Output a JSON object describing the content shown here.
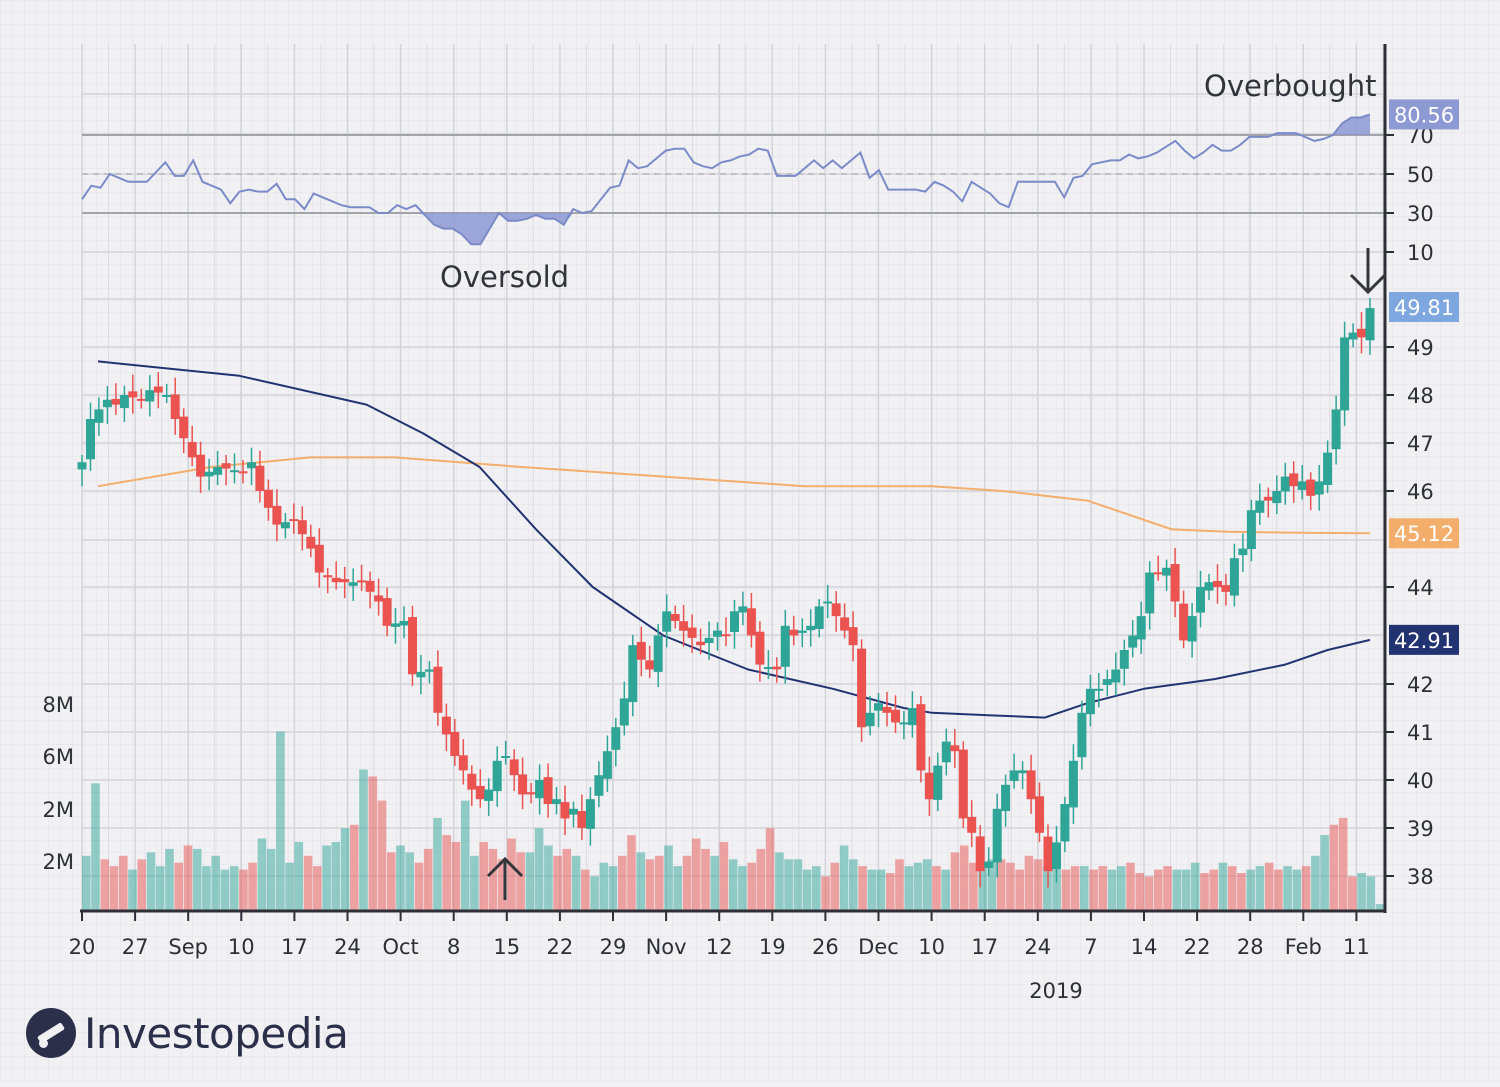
{
  "brand": {
    "name": "Investopedia",
    "icon": "investopedia-logo-icon"
  },
  "colors": {
    "up": "#2fa597",
    "down": "#ea5350",
    "ma_short": "#223371",
    "ma_long": "#f3ae6b",
    "rsi": "#7b8bc8",
    "rsi_fill": "#8d99d3"
  },
  "chart_data": [
    {
      "type": "line",
      "name": "RSI",
      "yaxis_ticks": [
        "70",
        "50",
        "30",
        "10"
      ],
      "reference_lines": [
        70,
        50,
        30
      ],
      "ylim": [
        0,
        100
      ],
      "current_value": "80.56",
      "annotations": {
        "overbought": "Overbought",
        "oversold": "Oversold"
      },
      "values": [
        37,
        44,
        43,
        50,
        48,
        46,
        46,
        46,
        51,
        56,
        49,
        49,
        57,
        46,
        44,
        42,
        35,
        41,
        42,
        41,
        41,
        45,
        37,
        37,
        32,
        40,
        38,
        36,
        34,
        33,
        33,
        33,
        30,
        30,
        34,
        32,
        34,
        29,
        24,
        22,
        22,
        19,
        14,
        14,
        22,
        30,
        26,
        26,
        27,
        29,
        27,
        27,
        24,
        32,
        30,
        31,
        37,
        43,
        44,
        57,
        53,
        54,
        58,
        62,
        63,
        63,
        56,
        54,
        53,
        56,
        57,
        59,
        60,
        63,
        62,
        49,
        49,
        49,
        53,
        57,
        53,
        57,
        53,
        57,
        61,
        48,
        52,
        42,
        42,
        42,
        42,
        41,
        46,
        44,
        41,
        36,
        46,
        43,
        40,
        35,
        33,
        46,
        46,
        46,
        46,
        46,
        38,
        48,
        49,
        55,
        56,
        57,
        57,
        60,
        58,
        59,
        61,
        64,
        67,
        62,
        58,
        61,
        65,
        62,
        62,
        65,
        69,
        69,
        69,
        71,
        71,
        71,
        69,
        67,
        68,
        70,
        76,
        79,
        79,
        80.56
      ]
    },
    {
      "type": "candlestick",
      "name": "Price",
      "yaxis_ticks": [
        "49",
        "48",
        "47",
        "46",
        "44",
        "42",
        "41",
        "40",
        "39",
        "38"
      ],
      "ylim": [
        37.4,
        50.6
      ],
      "xaxis_ticks": [
        "20",
        "27",
        "Sep",
        "10",
        "17",
        "24",
        "Oct",
        "8",
        "15",
        "22",
        "29",
        "Nov",
        "12",
        "19",
        "26",
        "Dec",
        "10",
        "17",
        "24",
        "7",
        "14",
        "22",
        "28",
        "Feb",
        "11"
      ],
      "year_label": "2019",
      "price_badges": [
        "49.81",
        "45.12",
        "42.91"
      ],
      "anchors": [
        [
          0,
          46.6
        ],
        [
          1,
          47.5
        ],
        [
          3,
          47.9
        ],
        [
          4,
          47.8
        ],
        [
          5,
          48.0
        ],
        [
          7,
          47.9
        ],
        [
          8,
          48.1
        ],
        [
          10,
          48.0
        ],
        [
          11,
          47.5
        ],
        [
          14,
          46.3
        ],
        [
          16,
          46.5
        ],
        [
          19,
          46.4
        ],
        [
          20,
          46.6
        ],
        [
          21,
          46.0
        ],
        [
          23,
          45.3
        ],
        [
          25,
          45.4
        ],
        [
          27,
          44.8
        ],
        [
          28,
          44.3
        ],
        [
          30,
          44.1
        ],
        [
          32,
          44.1
        ],
        [
          33,
          44.1
        ],
        [
          34,
          43.9
        ],
        [
          35,
          43.7
        ],
        [
          36,
          43.2
        ],
        [
          38,
          43.3
        ],
        [
          39,
          42.2
        ],
        [
          41,
          42.3
        ],
        [
          42,
          41.4
        ],
        [
          44,
          40.5
        ],
        [
          45,
          40.2
        ],
        [
          46,
          39.8
        ],
        [
          47,
          39.6
        ],
        [
          48,
          39.8
        ],
        [
          49,
          40.4
        ],
        [
          50,
          40.5
        ],
        [
          51,
          40.1
        ],
        [
          52,
          39.7
        ],
        [
          53,
          39.7
        ],
        [
          54,
          40.0
        ],
        [
          55,
          39.5
        ],
        [
          56,
          39.6
        ],
        [
          57,
          39.2
        ],
        [
          58,
          39.4
        ],
        [
          59,
          39.0
        ],
        [
          60,
          39.6
        ],
        [
          62,
          40.6
        ],
        [
          63,
          41.1
        ],
        [
          64,
          41.7
        ],
        [
          65,
          42.8
        ],
        [
          66,
          42.5
        ],
        [
          67,
          42.3
        ],
        [
          68,
          43.0
        ],
        [
          69,
          43.5
        ],
        [
          70,
          43.3
        ],
        [
          71,
          43.1
        ],
        [
          73,
          42.8
        ],
        [
          75,
          43.1
        ],
        [
          76,
          43.0
        ],
        [
          77,
          43.5
        ],
        [
          78,
          43.6
        ],
        [
          79,
          43.0
        ],
        [
          80,
          42.4
        ],
        [
          82,
          42.3
        ],
        [
          83,
          43.2
        ],
        [
          84,
          43.0
        ],
        [
          86,
          43.2
        ],
        [
          87,
          43.6
        ],
        [
          88,
          43.7
        ],
        [
          90,
          43.1
        ],
        [
          91,
          42.8
        ],
        [
          92,
          41.1
        ],
        [
          93,
          41.4
        ],
        [
          94,
          41.6
        ],
        [
          95,
          41.4
        ],
        [
          96,
          41.2
        ],
        [
          97,
          41.2
        ],
        [
          98,
          41.5
        ],
        [
          99,
          40.2
        ],
        [
          100,
          39.6
        ],
        [
          101,
          40.3
        ],
        [
          102,
          40.8
        ],
        [
          103,
          40.6
        ],
        [
          104,
          39.2
        ],
        [
          105,
          38.9
        ],
        [
          106,
          38.1
        ],
        [
          107,
          38.3
        ],
        [
          108,
          39.4
        ],
        [
          109,
          39.9
        ],
        [
          110,
          40.2
        ],
        [
          111,
          40.2
        ],
        [
          112,
          39.6
        ],
        [
          113,
          38.9
        ],
        [
          114,
          38.1
        ],
        [
          115,
          38.7
        ],
        [
          116,
          39.5
        ],
        [
          117,
          40.4
        ],
        [
          118,
          41.4
        ],
        [
          119,
          41.9
        ],
        [
          120,
          41.9
        ],
        [
          121,
          42.1
        ],
        [
          122,
          42.3
        ],
        [
          123,
          42.7
        ],
        [
          124,
          43.0
        ],
        [
          125,
          43.4
        ],
        [
          126,
          44.3
        ],
        [
          127,
          44.3
        ],
        [
          128,
          44.4
        ],
        [
          129,
          43.7
        ],
        [
          130,
          42.9
        ],
        [
          131,
          43.4
        ],
        [
          132,
          44.0
        ],
        [
          133,
          44.1
        ],
        [
          134,
          44.0
        ],
        [
          135,
          43.9
        ],
        [
          136,
          44.6
        ],
        [
          137,
          44.8
        ],
        [
          138,
          45.6
        ],
        [
          139,
          45.8
        ],
        [
          140,
          45.8
        ],
        [
          141,
          46.0
        ],
        [
          142,
          46.3
        ],
        [
          143,
          46.1
        ],
        [
          144,
          46.2
        ],
        [
          145,
          45.9
        ],
        [
          146,
          46.2
        ],
        [
          147,
          46.8
        ],
        [
          148,
          47.7
        ],
        [
          149,
          49.2
        ],
        [
          150,
          49.3
        ],
        [
          151,
          49.2
        ],
        [
          152,
          49.81
        ]
      ],
      "ma_short": [
        [
          0,
          48.7
        ],
        [
          20,
          48.4
        ],
        [
          38,
          47.8
        ],
        [
          46,
          47.2
        ],
        [
          54,
          46.5
        ],
        [
          62,
          45.2
        ],
        [
          70,
          44.0
        ],
        [
          80,
          43.0
        ],
        [
          92,
          42.3
        ],
        [
          104,
          41.9
        ],
        [
          114,
          41.5
        ],
        [
          118,
          41.4
        ],
        [
          126,
          41.35
        ],
        [
          134,
          41.3
        ],
        [
          140,
          41.6
        ],
        [
          148,
          41.9
        ],
        [
          158,
          42.1
        ],
        [
          168,
          42.4
        ],
        [
          174,
          42.7
        ],
        [
          180,
          42.91
        ]
      ],
      "ma_long": [
        [
          0,
          46.1
        ],
        [
          16,
          46.5
        ],
        [
          30,
          46.7
        ],
        [
          42,
          46.7
        ],
        [
          60,
          46.5
        ],
        [
          80,
          46.3
        ],
        [
          100,
          46.1
        ],
        [
          118,
          46.1
        ],
        [
          128,
          46.0
        ],
        [
          140,
          45.8
        ],
        [
          152,
          45.2
        ],
        [
          160,
          45.15
        ],
        [
          170,
          45.13
        ],
        [
          180,
          45.12
        ]
      ]
    },
    {
      "type": "bar",
      "name": "Volume",
      "yaxis_ticks": [
        "8M",
        "6M",
        "2M",
        "2M"
      ],
      "values": [
        1.6,
        3.7,
        1.5,
        1.3,
        1.6,
        1.2,
        1.5,
        1.7,
        1.3,
        1.8,
        1.4,
        1.9,
        1.8,
        1.3,
        1.6,
        1.2,
        1.3,
        1.2,
        1.4,
        2.1,
        1.8,
        5.2,
        1.4,
        2.0,
        1.6,
        1.3,
        1.9,
        2.0,
        2.4,
        2.5,
        4.1,
        3.9,
        3.2,
        1.7,
        1.9,
        1.7,
        1.4,
        1.8,
        2.7,
        2.2,
        2.0,
        3.2,
        1.6,
        2.0,
        1.8,
        1.5,
        2.1,
        1.7,
        1.7,
        2.4,
        1.9,
        1.6,
        1.8,
        1.6,
        1.2,
        1.0,
        1.4,
        1.3,
        1.6,
        2.2,
        1.7,
        1.5,
        1.6,
        1.9,
        1.3,
        1.6,
        2.1,
        1.8,
        1.6,
        2.0,
        1.5,
        1.3,
        1.4,
        1.8,
        2.4,
        1.7,
        1.5,
        1.5,
        1.2,
        1.3,
        1.0,
        1.4,
        1.9,
        1.5,
        1.3,
        1.2,
        1.2,
        1.1,
        1.5,
        1.3,
        1.4,
        1.5,
        1.3,
        1.2,
        1.7,
        1.9,
        1.4,
        1.4,
        1.5,
        1.5,
        1.4,
        1.2,
        1.6,
        1.5,
        1.3,
        1.5,
        1.2,
        1.3,
        1.3,
        1.2,
        1.3,
        1.2,
        1.3,
        1.4,
        1.1,
        1.0,
        1.2,
        1.3,
        1.2,
        1.2,
        1.4,
        1.1,
        1.2,
        1.4,
        1.3,
        1.1,
        1.2,
        1.3,
        1.4,
        1.2,
        1.3,
        1.2,
        1.3,
        1.6,
        2.2,
        2.5,
        2.7,
        1.0,
        1.1,
        1.0,
        0.2
      ]
    }
  ]
}
